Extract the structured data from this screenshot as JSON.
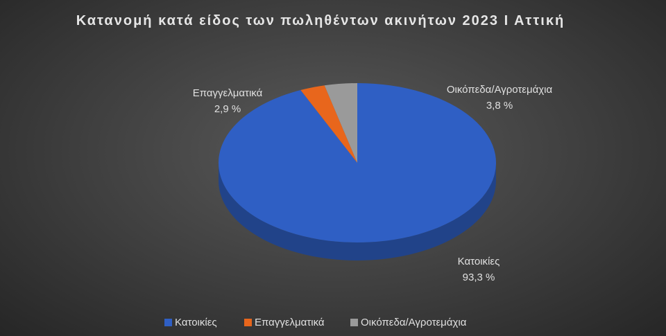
{
  "chart_data": {
    "type": "pie",
    "title": "Κατανομή κατά είδος των πωληθέντων ακινήτων 2023 Ι Αττική",
    "categories": [
      "Κατοικίες",
      "Επαγγελματικά",
      "Οικόπεδα/Αγροτεμάχια"
    ],
    "values": [
      93.3,
      2.9,
      3.8
    ],
    "value_labels": [
      "93,3 %",
      "2,9 %",
      "3,8 %"
    ],
    "colors": [
      "#2f5fc4",
      "#e8661c",
      "#9a9a9a"
    ],
    "legend": "bottom"
  }
}
